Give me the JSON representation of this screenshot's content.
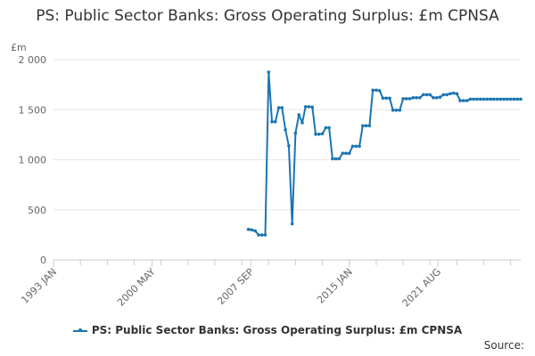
{
  "chart_data": {
    "type": "line",
    "title": "PS: Public Sector Banks: Gross Operating Surplus: £m CPNSA",
    "ylabel": "£m",
    "ylim": [
      0,
      2000
    ],
    "yticks": [
      0,
      500,
      1000,
      1500,
      2000
    ],
    "ytick_labels": [
      "0",
      "500",
      "1 000",
      "1 500",
      "2 000"
    ],
    "xticks": [
      "1993 JAN",
      "2000 MAY",
      "2007 SEP",
      "2015 JAN",
      "2021 AUG"
    ],
    "grid": "horizontal",
    "legend": "bottom",
    "series": [
      {
        "name": "PS: Public Sector Banks: Gross Operating Surplus: £m CPNSA",
        "color": "#1b75b1",
        "points": [
          [
            "2007 Q3",
            305
          ],
          [
            "2007 Q4",
            300
          ],
          [
            "2008 Q1",
            290
          ],
          [
            "2008 Q2",
            250
          ],
          [
            "2008 Q3",
            248
          ],
          [
            "2008 Q4",
            250
          ],
          [
            "2009 Q1",
            1875
          ],
          [
            "2009 Q2",
            1380
          ],
          [
            "2009 Q3",
            1380
          ],
          [
            "2009 Q4",
            1520
          ],
          [
            "2010 Q1",
            1520
          ],
          [
            "2010 Q2",
            1300
          ],
          [
            "2010 Q3",
            1140
          ],
          [
            "2010 Q4",
            360
          ],
          [
            "2011 Q1",
            1265
          ],
          [
            "2011 Q2",
            1450
          ],
          [
            "2011 Q3",
            1370
          ],
          [
            "2011 Q4",
            1530
          ],
          [
            "2012 Q1",
            1530
          ],
          [
            "2012 Q2",
            1525
          ],
          [
            "2012 Q3",
            1255
          ],
          [
            "2012 Q4",
            1255
          ],
          [
            "2013 Q1",
            1260
          ],
          [
            "2013 Q2",
            1320
          ],
          [
            "2013 Q3",
            1320
          ],
          [
            "2013 Q4",
            1010
          ],
          [
            "2014 Q1",
            1010
          ],
          [
            "2014 Q2",
            1010
          ],
          [
            "2014 Q3",
            1065
          ],
          [
            "2014 Q4",
            1065
          ],
          [
            "2015 Q1",
            1065
          ],
          [
            "2015 Q2",
            1135
          ],
          [
            "2015 Q3",
            1135
          ],
          [
            "2015 Q4",
            1135
          ],
          [
            "2016 Q1",
            1340
          ],
          [
            "2016 Q2",
            1340
          ],
          [
            "2016 Q3",
            1340
          ],
          [
            "2016 Q4",
            1695
          ],
          [
            "2017 Q1",
            1695
          ],
          [
            "2017 Q2",
            1690
          ],
          [
            "2017 Q3",
            1615
          ],
          [
            "2017 Q4",
            1615
          ],
          [
            "2018 Q1",
            1615
          ],
          [
            "2018 Q2",
            1495
          ],
          [
            "2018 Q3",
            1495
          ],
          [
            "2018 Q4",
            1495
          ],
          [
            "2019 Q1",
            1610
          ],
          [
            "2019 Q2",
            1610
          ],
          [
            "2019 Q3",
            1610
          ],
          [
            "2019 Q4",
            1620
          ],
          [
            "2020 Q1",
            1620
          ],
          [
            "2020 Q2",
            1620
          ],
          [
            "2020 Q3",
            1650
          ],
          [
            "2020 Q4",
            1650
          ],
          [
            "2021 Q1",
            1650
          ],
          [
            "2021 Q2",
            1620
          ],
          [
            "2021 Q3",
            1620
          ],
          [
            "2021 Q4",
            1625
          ],
          [
            "2022 Q1",
            1650
          ],
          [
            "2022 Q2",
            1650
          ],
          [
            "2022 Q3",
            1660
          ],
          [
            "2022 Q4",
            1665
          ],
          [
            "2023 Q1",
            1660
          ],
          [
            "2023 Q2",
            1590
          ],
          [
            "2023 Q3",
            1590
          ],
          [
            "2023 Q4",
            1590
          ],
          [
            "2024 Q1",
            1605
          ],
          [
            "2024 Q2",
            1605
          ],
          [
            "2024 Q3",
            1605
          ],
          [
            "2024 Q4",
            1605
          ],
          [
            "2025 Q1",
            1605
          ],
          [
            "2025 Q2",
            1605
          ],
          [
            "2025 Q3",
            1605
          ],
          [
            "2025 Q4",
            1605
          ],
          [
            "2026 Q1",
            1605
          ],
          [
            "2026 Q2",
            1605
          ],
          [
            "2026 Q3",
            1605
          ],
          [
            "2026 Q4",
            1605
          ],
          [
            "2027 Q1",
            1605
          ],
          [
            "2027 Q2",
            1605
          ],
          [
            "2027 Q3",
            1605
          ],
          [
            "2027 Q4",
            1605
          ]
        ]
      }
    ]
  },
  "legend": {
    "label": "PS: Public Sector Banks: Gross Operating Surplus: £m CPNSA"
  },
  "footer": {
    "source_label": "Source:"
  }
}
